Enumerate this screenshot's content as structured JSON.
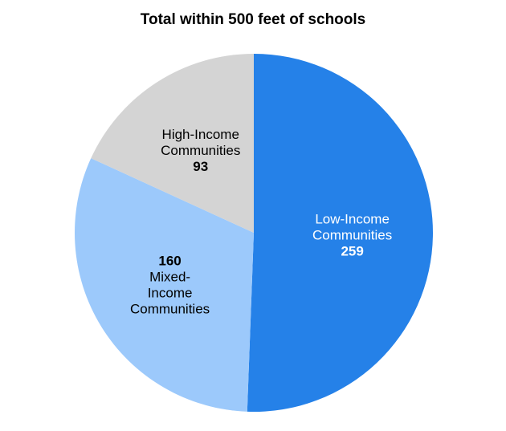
{
  "chart_data": {
    "type": "pie",
    "title": "Total within 500 feet of schools",
    "slices": [
      {
        "label_lines": [
          "Low-Income",
          "Communities"
        ],
        "value": 259,
        "value_first": false,
        "color": "#2581e8",
        "text_color": "#ffffff"
      },
      {
        "label_lines": [
          "Mixed-",
          "Income",
          "Communities"
        ],
        "value": 160,
        "value_first": true,
        "color": "#9cc9fb",
        "text_color": "#000000"
      },
      {
        "label_lines": [
          "High-Income",
          "Communities"
        ],
        "value": 93,
        "value_first": false,
        "color": "#d4d4d4",
        "text_color": "#000000"
      }
    ],
    "start_angle_deg": 0,
    "direction": "clockwise",
    "legend": "none",
    "labels": "inside"
  }
}
